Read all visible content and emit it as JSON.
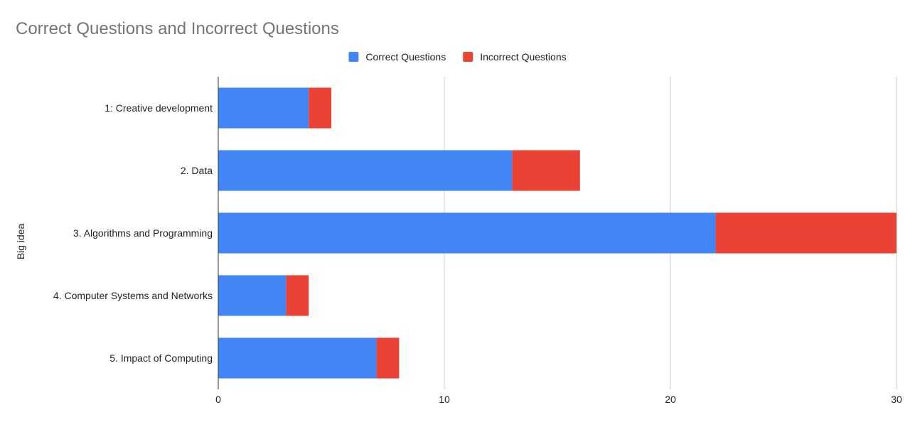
{
  "chart_data": {
    "type": "bar",
    "orientation": "horizontal",
    "stacked": true,
    "title": "Correct Questions and Incorrect Questions",
    "xlabel": "",
    "ylabel": "Big idea",
    "categories": [
      "1: Creative development",
      "2. Data",
      "3. Algorithms and Programming",
      "4. Computer Systems and Networks",
      "5. Impact of Computing"
    ],
    "series": [
      {
        "name": "Correct Questions",
        "color": "#4285f4",
        "values": [
          4,
          13,
          22,
          3,
          7
        ]
      },
      {
        "name": "Incorrect Questions",
        "color": "#ea4335",
        "values": [
          1,
          3,
          8,
          1,
          1
        ]
      }
    ],
    "xlim": [
      0,
      30
    ],
    "xticks": [
      0,
      10,
      20,
      30
    ],
    "grid": true,
    "legend_position": "top"
  }
}
